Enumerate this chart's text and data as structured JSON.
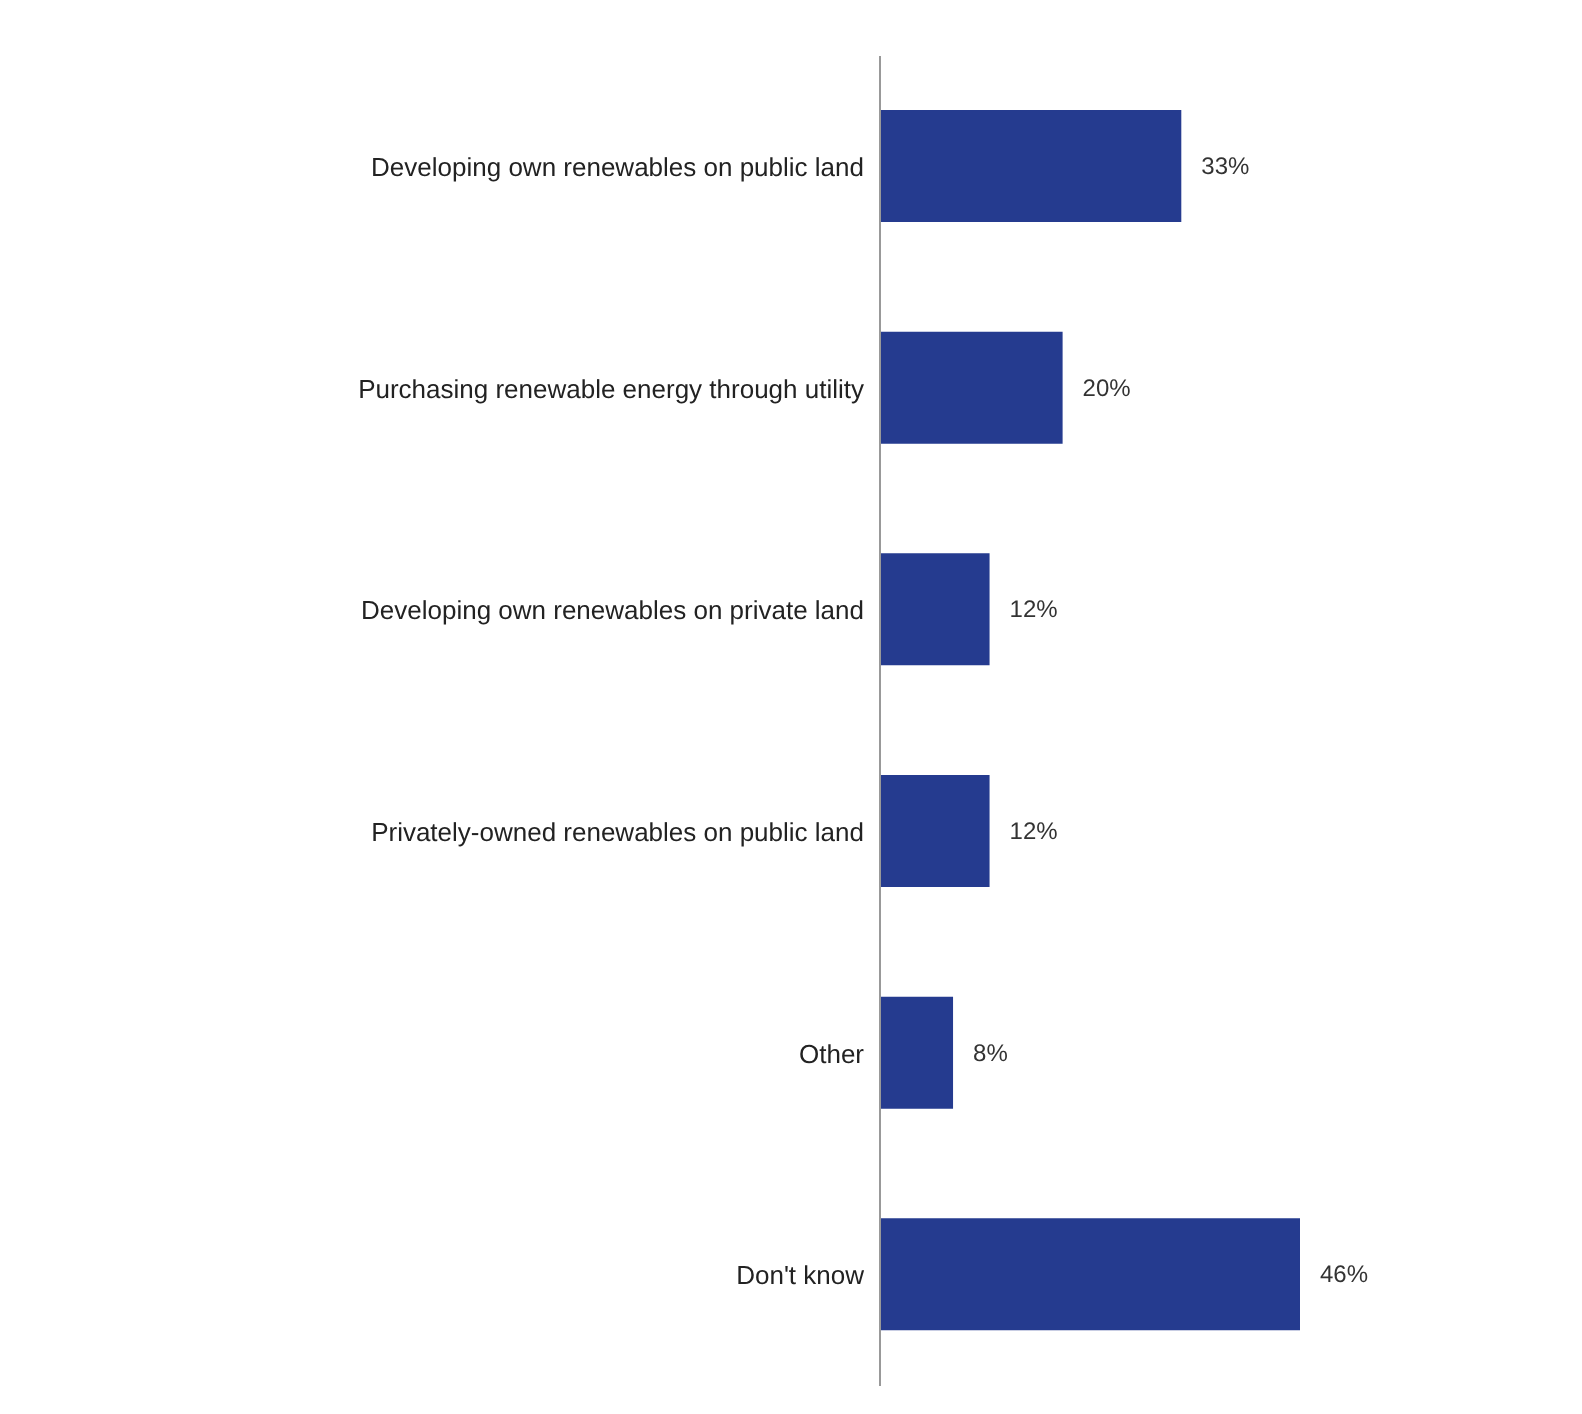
{
  "chart_data": {
    "type": "bar",
    "orientation": "horizontal",
    "categories": [
      "Developing own renewables on public land",
      "Purchasing renewable energy through utility",
      "Developing own renewables on private land",
      "Privately-owned renewables on public land",
      "Other",
      "Don't know"
    ],
    "values": [
      33,
      20,
      12,
      12,
      8,
      46
    ],
    "value_labels": [
      "33%",
      "20%",
      "12%",
      "12%",
      "8%",
      "46%"
    ],
    "color": "#253b8f",
    "grid": false,
    "legend": false
  }
}
